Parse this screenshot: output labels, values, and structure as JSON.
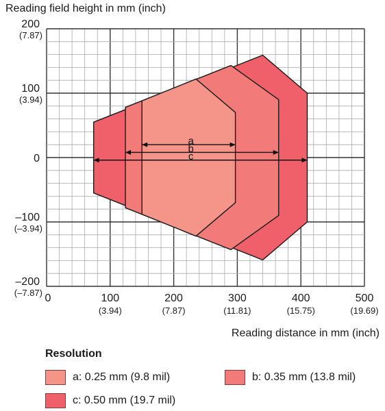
{
  "chart_data": {
    "type": "area",
    "ylabel": "Reading field height in mm (inch)",
    "xlabel": "Reading distance in mm (inch)",
    "xlim": [
      0,
      500
    ],
    "ylim": [
      -200,
      200
    ],
    "grid": true,
    "x_ticks": [
      {
        "value": 0,
        "mm": "0",
        "inch": ""
      },
      {
        "value": 100,
        "mm": "100",
        "inch": "(3.94)"
      },
      {
        "value": 200,
        "mm": "200",
        "inch": "(7.87)"
      },
      {
        "value": 300,
        "mm": "300",
        "inch": "(11.81)"
      },
      {
        "value": 400,
        "mm": "400",
        "inch": "(15.75)"
      },
      {
        "value": 500,
        "mm": "500",
        "inch": "(19.69)"
      }
    ],
    "y_ticks": [
      {
        "value": 200,
        "mm": "200",
        "inch": "(7.87)"
      },
      {
        "value": 100,
        "mm": "100",
        "inch": "(3.94)"
      },
      {
        "value": 0,
        "mm": "0",
        "inch": ""
      },
      {
        "value": -100,
        "mm": "–100",
        "inch": "(–3.94)"
      },
      {
        "value": -200,
        "mm": "–200",
        "inch": "(–7.87)"
      }
    ],
    "legend_title": "Resolution",
    "series": [
      {
        "key": "c",
        "name": "c: 0.50 mm (19.7 mil)",
        "color": "#f0606a",
        "range": [
          74,
          410
        ],
        "polygon": [
          [
            74,
            55
          ],
          [
            340,
            159
          ],
          [
            410,
            100
          ],
          [
            410,
            -100
          ],
          [
            340,
            -159
          ],
          [
            74,
            -55
          ]
        ]
      },
      {
        "key": "b",
        "name": "b: 0.35 mm (13.8 mil)",
        "color": "#f27a78",
        "range": [
          124,
          365
        ],
        "polygon": [
          [
            124,
            78
          ],
          [
            290,
            143
          ],
          [
            365,
            90
          ],
          [
            365,
            -90
          ],
          [
            290,
            -143
          ],
          [
            124,
            -78
          ]
        ]
      },
      {
        "key": "a",
        "name": "a: 0.25 mm (9.8 mil)",
        "color": "#f5958a",
        "range": [
          150,
          297
        ],
        "polygon": [
          [
            150,
            88
          ],
          [
            235,
            122
          ],
          [
            297,
            70
          ],
          [
            297,
            -70
          ],
          [
            235,
            -122
          ],
          [
            150,
            -88
          ]
        ]
      }
    ]
  }
}
